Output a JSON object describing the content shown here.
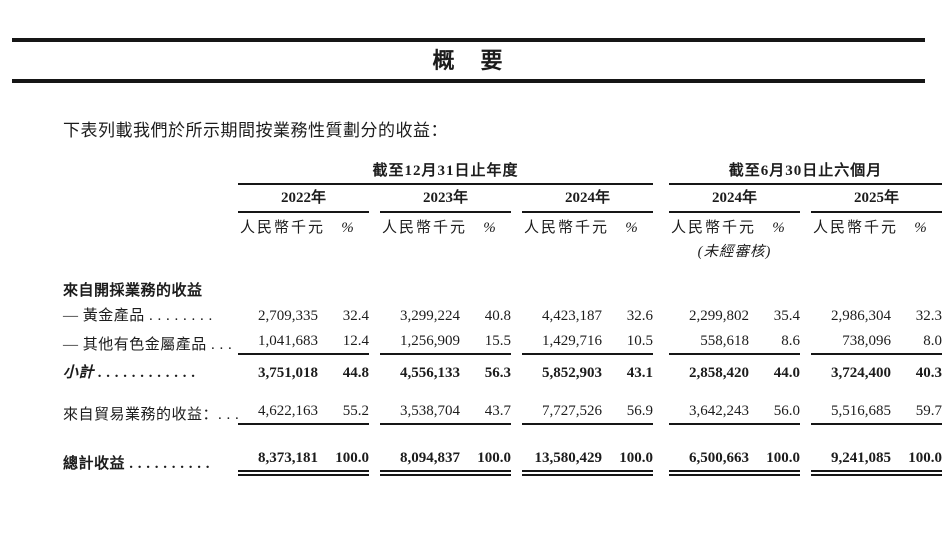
{
  "header": {
    "title": "概　要"
  },
  "intro": {
    "text": "下表列載我們於所示期間按業務性質劃分的收益："
  },
  "colors": {
    "ink": "#1c1c1c",
    "rule": "#161616",
    "background": "#ffffff"
  },
  "table": {
    "groups": [
      {
        "label": "截至12月31日止年度",
        "years": [
          "2022年",
          "2023年",
          "2024年"
        ]
      },
      {
        "label": "截至6月30日止六個月",
        "years": [
          "2024年",
          "2025年"
        ]
      }
    ],
    "unit_label": "人民幣千元",
    "percent_label": "%",
    "unaudited_note": "(未經審核)",
    "unaudited_under_year_index": 3,
    "rows": [
      {
        "style": "section",
        "label": "來自開採業務的收益",
        "rule": "none",
        "values": []
      },
      {
        "style": "item",
        "label": "— 黃金產品 . . . . . . . .",
        "rule": "none",
        "values": [
          [
            "2,709,335",
            "32.4"
          ],
          [
            "3,299,224",
            "40.8"
          ],
          [
            "4,423,187",
            "32.6"
          ],
          [
            "2,299,802",
            "35.4"
          ],
          [
            "2,986,304",
            "32.3"
          ]
        ]
      },
      {
        "style": "item",
        "label": "— 其他有色金屬產品 . . .",
        "rule": "single",
        "values": [
          [
            "1,041,683",
            "12.4"
          ],
          [
            "1,256,909",
            "15.5"
          ],
          [
            "1,429,716",
            "10.5"
          ],
          [
            "558,618",
            "8.6"
          ],
          [
            "738,096",
            "8.0"
          ]
        ]
      },
      {
        "style": "subtotal",
        "label": "小計 . . . . . . . . . . . .",
        "rule": "none",
        "values": [
          [
            "3,751,018",
            "44.8"
          ],
          [
            "4,556,133",
            "56.3"
          ],
          [
            "5,852,903",
            "43.1"
          ],
          [
            "2,858,420",
            "44.0"
          ],
          [
            "3,724,400",
            "40.3"
          ]
        ]
      },
      {
        "style": "spacer1"
      },
      {
        "style": "item",
        "label": "來自貿易業務的收益：. . .",
        "rule": "single",
        "values": [
          [
            "4,622,163",
            "55.2"
          ],
          [
            "3,538,704",
            "43.7"
          ],
          [
            "7,727,526",
            "56.9"
          ],
          [
            "3,642,243",
            "56.0"
          ],
          [
            "5,516,685",
            "59.7"
          ]
        ]
      },
      {
        "style": "spacer2"
      },
      {
        "style": "total",
        "label": "總計收益 . . . . . . . . . .",
        "rule": "double",
        "values": [
          [
            "8,373,181",
            "100.0"
          ],
          [
            "8,094,837",
            "100.0"
          ],
          [
            "13,580,429",
            "100.0"
          ],
          [
            "6,500,663",
            "100.0"
          ],
          [
            "9,241,085",
            "100.0"
          ]
        ]
      }
    ]
  }
}
